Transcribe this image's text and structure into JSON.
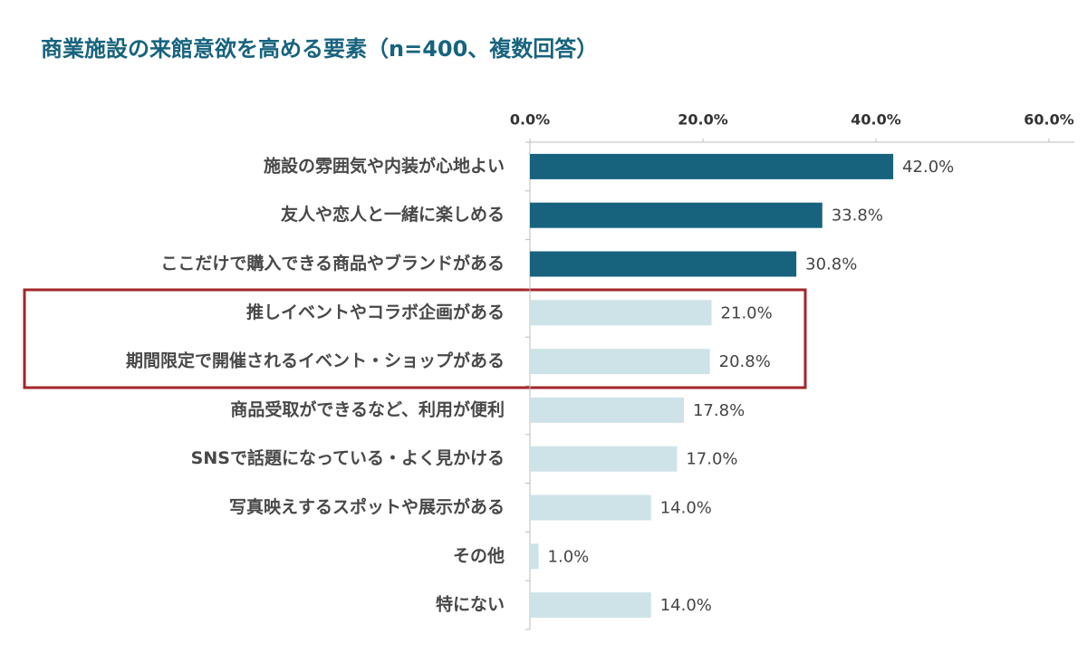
{
  "chart_data": {
    "type": "bar",
    "orientation": "horizontal",
    "title": "商業施設の来館意欲を高める要素（n=400、複数回答）",
    "categories": [
      "施設の雰囲気や内装が心地よい",
      "友人や恋人と一緒に楽しめる",
      "ここだけで購入できる商品やブランドがある",
      "推しイベントやコラボ企画がある",
      "期間限定で開催されるイベント・ショップがある",
      "商品受取ができるなど、利用が便利",
      "SNSで話題になっている・よく見かける",
      "写真映えするスポットや展示がある",
      "その他",
      "特にない"
    ],
    "values": [
      42.0,
      33.8,
      30.8,
      21.0,
      20.8,
      17.8,
      17.0,
      14.0,
      1.0,
      14.0
    ],
    "value_labels": [
      "42.0%",
      "33.8%",
      "30.8%",
      "21.0%",
      "20.8%",
      "17.8%",
      "17.0%",
      "14.0%",
      "1.0%",
      "14.0%"
    ],
    "colors": [
      "#17637e",
      "#17637e",
      "#17637e",
      "#cde3e8",
      "#cde3e8",
      "#cde3e8",
      "#cde3e8",
      "#cde3e8",
      "#cde3e8",
      "#cde3e8"
    ],
    "xlim": [
      0,
      60
    ],
    "xticks": [
      {
        "value": 0,
        "label": "0.0%"
      },
      {
        "value": 20,
        "label": "20.0%"
      },
      {
        "value": 40,
        "label": "40.0%"
      },
      {
        "value": 60,
        "label": "60.0%"
      }
    ]
  }
}
